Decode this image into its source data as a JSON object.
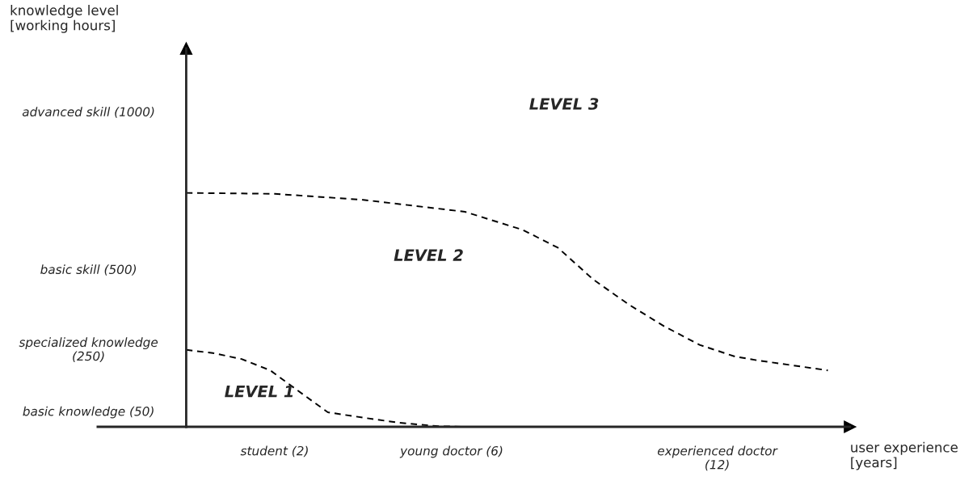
{
  "chart_data": {
    "type": "line",
    "xlabel": "user experience\n[years]",
    "ylabel": "knowledge level\n[working hours]",
    "xlim": [
      -2,
      15
    ],
    "ylim": [
      0,
      1200
    ],
    "xticks": [
      {
        "value": 2,
        "label": "student (2)"
      },
      {
        "value": 6,
        "label": "young doctor (6)"
      },
      {
        "value": 12,
        "label": "experienced doctor\n(12)"
      }
    ],
    "yticks": [
      {
        "value": 50,
        "label": "basic knowledge (50)"
      },
      {
        "value": 250,
        "label": "specialized knowledge\n(250)"
      },
      {
        "value": 500,
        "label": "basic skill (500)"
      },
      {
        "value": 1000,
        "label": "advanced skill (1000)"
      }
    ],
    "series": [
      {
        "color": "#000000",
        "x": [
          0,
          2.0,
          4.0,
          6.3,
          7.6,
          8.4,
          9.2,
          10.0,
          10.8,
          11.6,
          12.4,
          12.9,
          14.5
        ],
        "values": [
          742,
          739,
          720,
          682,
          625,
          568,
          467,
          388,
          319,
          260,
          223,
          211,
          179
        ]
      },
      {
        "color": "#000000",
        "x": [
          0,
          0.6,
          1.25,
          1.9,
          2.5,
          3.2,
          4.0,
          4.8,
          5.7,
          6.3
        ],
        "values": [
          244,
          234,
          215,
          179,
          117,
          46,
          29,
          13,
          2,
          0
        ]
      }
    ],
    "annotations": [
      "LEVEL 1",
      "LEVEL 2",
      "LEVEL 3"
    ],
    "line_style": "dashed",
    "marker": "none",
    "grid": false,
    "legend": false
  }
}
